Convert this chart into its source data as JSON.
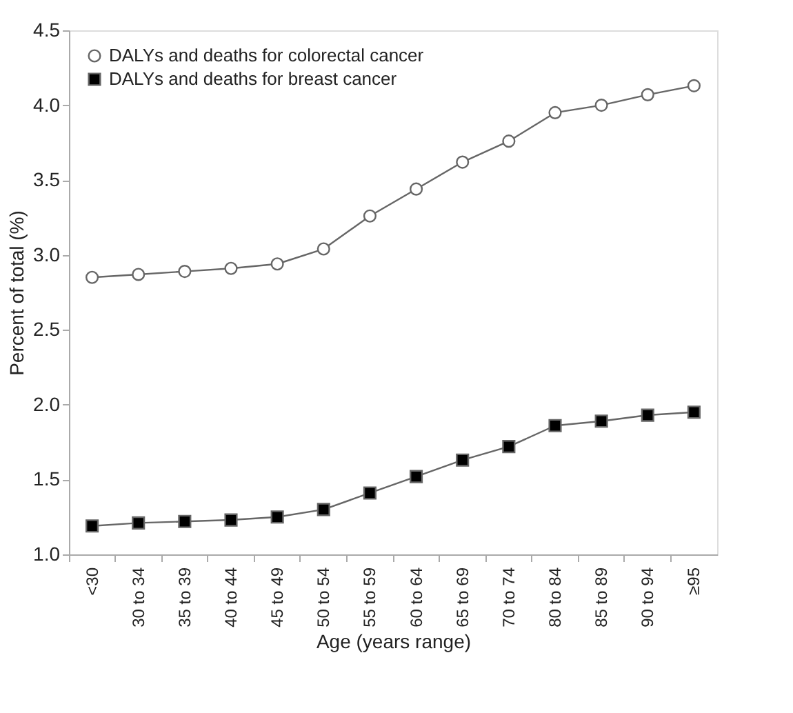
{
  "chart_data": {
    "type": "line",
    "xlabel": "Age (years range)",
    "ylabel": "Percent of total (%)",
    "categories": [
      "<30",
      "30 to 34",
      "35 to 39",
      "40 to 44",
      "45 to 49",
      "50 to 54",
      "55 to 59",
      "60 to 64",
      "65 to 69",
      "70 to 74",
      "80 to 84",
      "85 to 89",
      "90 to 94",
      "≥95"
    ],
    "ylim": [
      1.0,
      4.5
    ],
    "yticks": [
      {
        "value": 1.0,
        "label": "1.0"
      },
      {
        "value": 1.5,
        "label": "1.5"
      },
      {
        "value": 2.0,
        "label": "2.0"
      },
      {
        "value": 2.5,
        "label": "2.5"
      },
      {
        "value": 3.0,
        "label": "3.0"
      },
      {
        "value": 3.5,
        "label": "3.5"
      },
      {
        "value": 4.0,
        "label": "4.0"
      },
      {
        "value": 4.5,
        "label": "4.5"
      }
    ],
    "grid": false,
    "legend": "top left",
    "line_style": "solid",
    "series": [
      {
        "name": "DALYs and deaths for colorectal cancer",
        "color": "#ffffff",
        "marker": "circle",
        "values": [
          2.85,
          2.87,
          2.89,
          2.91,
          2.94,
          3.04,
          3.26,
          3.44,
          3.62,
          3.76,
          3.95,
          4.0,
          4.07,
          4.13
        ]
      },
      {
        "name": "DALYs and deaths for breast cancer",
        "color": "#000000",
        "marker": "square",
        "values": [
          1.19,
          1.21,
          1.22,
          1.23,
          1.25,
          1.3,
          1.41,
          1.52,
          1.63,
          1.72,
          1.86,
          1.89,
          1.93,
          1.95
        ]
      }
    ]
  }
}
